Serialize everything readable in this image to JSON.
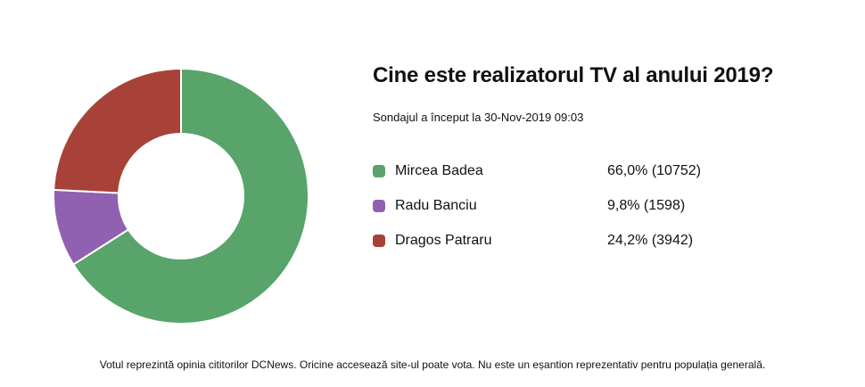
{
  "page": {
    "background": "#ffffff",
    "text_color": "#111111"
  },
  "header": {
    "title": "Cine este realizatorul TV al anului 2019?",
    "subtitle": "Sondajul a început la 30-Nov-2019 09:03"
  },
  "chart_data": {
    "type": "pie",
    "subtype": "donut",
    "title": "Cine este realizatorul TV al anului 2019?",
    "categories": [
      "Mircea Badea",
      "Radu Banciu",
      "Dragos Patraru"
    ],
    "values": [
      66.0,
      9.8,
      24.2
    ],
    "counts": [
      10752,
      1598,
      3942
    ],
    "colors": [
      "#58A46A",
      "#9061B0",
      "#A84238"
    ],
    "start_angle_deg": 0,
    "direction": "clockwise",
    "inner_radius_ratio": 0.49,
    "slice_border_color": "#ffffff",
    "slice_border_width": 2,
    "legend_position": "right",
    "grid": false
  },
  "legend": {
    "items": [
      {
        "label": "Mircea Badea",
        "value_text": "66,0% (10752)",
        "color": "#58A46A"
      },
      {
        "label": "Radu Banciu",
        "value_text": "9,8% (1598)",
        "color": "#9061B0"
      },
      {
        "label": "Dragos Patraru",
        "value_text": "24,2% (3942)",
        "color": "#A84238"
      }
    ]
  },
  "footer": {
    "text": "Votul reprezintă opinia cititorilor DCNews. Oricine accesează site-ul poate vota. Nu este un eșantion reprezentativ pentru populația generală."
  }
}
